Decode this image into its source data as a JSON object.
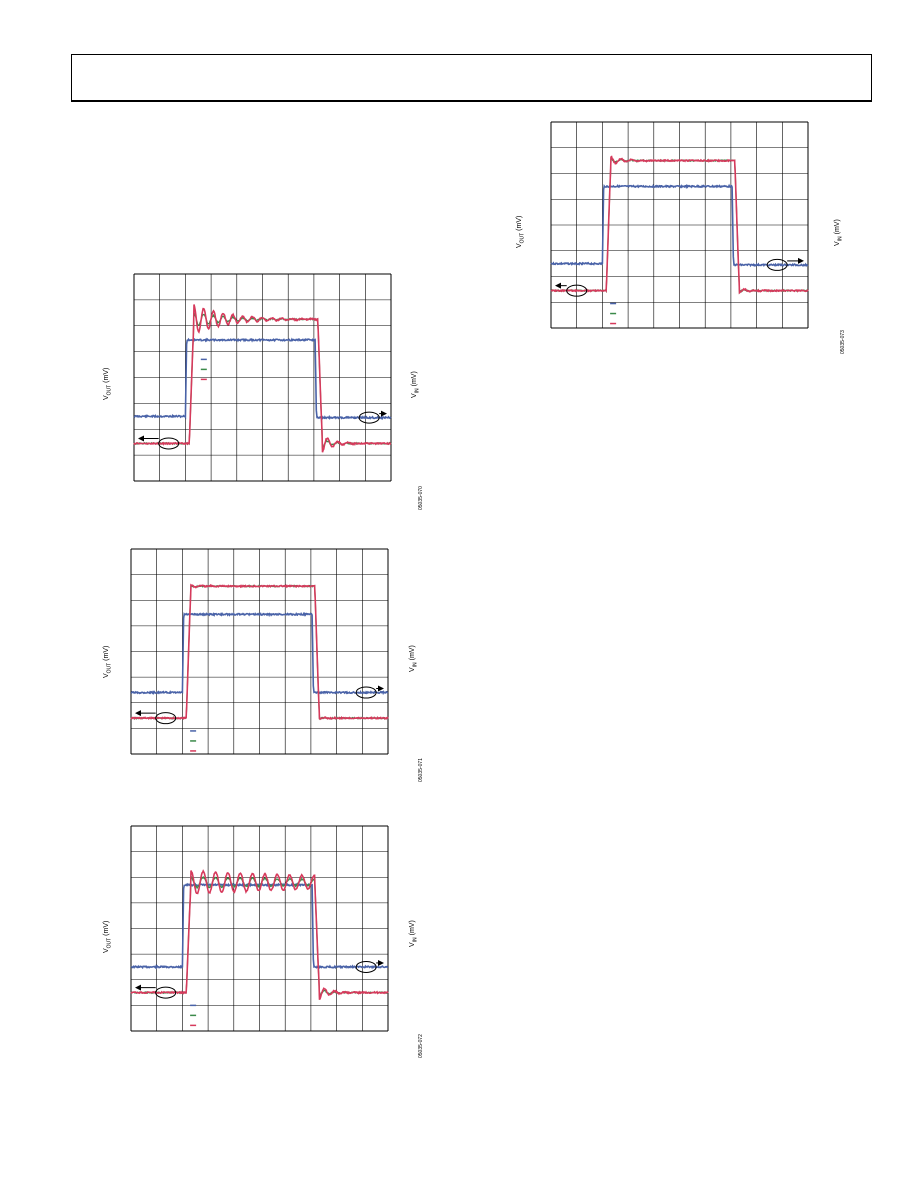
{
  "page": {
    "header": ""
  },
  "axis_labels": {
    "y_left": "V",
    "y_left_sub": "OUT",
    "y_left_unit": " (mV)",
    "y_right": "V",
    "y_right_sub": "IN",
    "y_right_unit": " (mV)"
  },
  "colors": {
    "vin": "#4a63a8",
    "trace_green": "#3b8a4a",
    "trace_red": "#d63a5c",
    "grid": "#000000"
  },
  "chart_data": [
    {
      "type": "line",
      "figure_id": "05035-070",
      "grid": true,
      "x_divisions": 10,
      "y_divisions": 8,
      "vin": {
        "pre": 5.5,
        "high": 2.55,
        "post": 5.55
      },
      "vout": {
        "pre": 6.55,
        "high": 1.75,
        "post": 6.55,
        "ring_amp": 0.55,
        "ring_period": 0.38,
        "ring_decay": 1.3
      },
      "edges": {
        "rise": 2.05,
        "fall": 7.15
      },
      "legend": {
        "position": "center-left"
      },
      "arrows": {
        "left_ellipse": 1.35,
        "right_ellipse": 9.15
      }
    },
    {
      "type": "line",
      "figure_id": "05035-071",
      "grid": true,
      "x_divisions": 10,
      "y_divisions": 8,
      "vin": {
        "pre": 5.6,
        "high": 2.55,
        "post": 5.6
      },
      "vout": {
        "pre": 6.6,
        "high": 1.45,
        "post": 6.6,
        "ring_amp": 0.05,
        "ring_period": 0.4,
        "ring_decay": 0.5
      },
      "edges": {
        "rise": 2.05,
        "fall": 7.15
      },
      "legend": {
        "position": "bottom-left"
      },
      "arrows": {
        "left_ellipse": 1.35,
        "right_ellipse": 9.15
      }
    },
    {
      "type": "line",
      "figure_id": "05035-072",
      "grid": true,
      "x_divisions": 10,
      "y_divisions": 8,
      "vin": {
        "pre": 5.5,
        "high": 2.3,
        "post": 5.5
      },
      "vout": {
        "pre": 6.5,
        "high": 2.2,
        "post": 6.5,
        "ring_amp": 0.45,
        "ring_period": 0.48,
        "ring_decay": 9.0
      },
      "edges": {
        "rise": 2.05,
        "fall": 7.15
      },
      "legend": {
        "position": "bottom-left"
      },
      "arrows": {
        "left_ellipse": 1.35,
        "right_ellipse": 9.15
      }
    },
    {
      "type": "line",
      "figure_id": "05035-073",
      "grid": true,
      "x_divisions": 10,
      "y_divisions": 8,
      "vin": {
        "pre": 5.5,
        "high": 2.5,
        "post": 5.55
      },
      "vout": {
        "pre": 6.55,
        "high": 1.5,
        "post": 6.55,
        "ring_amp": 0.15,
        "ring_period": 0.4,
        "ring_decay": 0.5
      },
      "edges": {
        "rise": 2.05,
        "fall": 7.15
      },
      "legend": {
        "position": "bottom-left"
      },
      "arrows": {
        "left_ellipse": 1.0,
        "right_ellipse": 8.8
      }
    }
  ]
}
